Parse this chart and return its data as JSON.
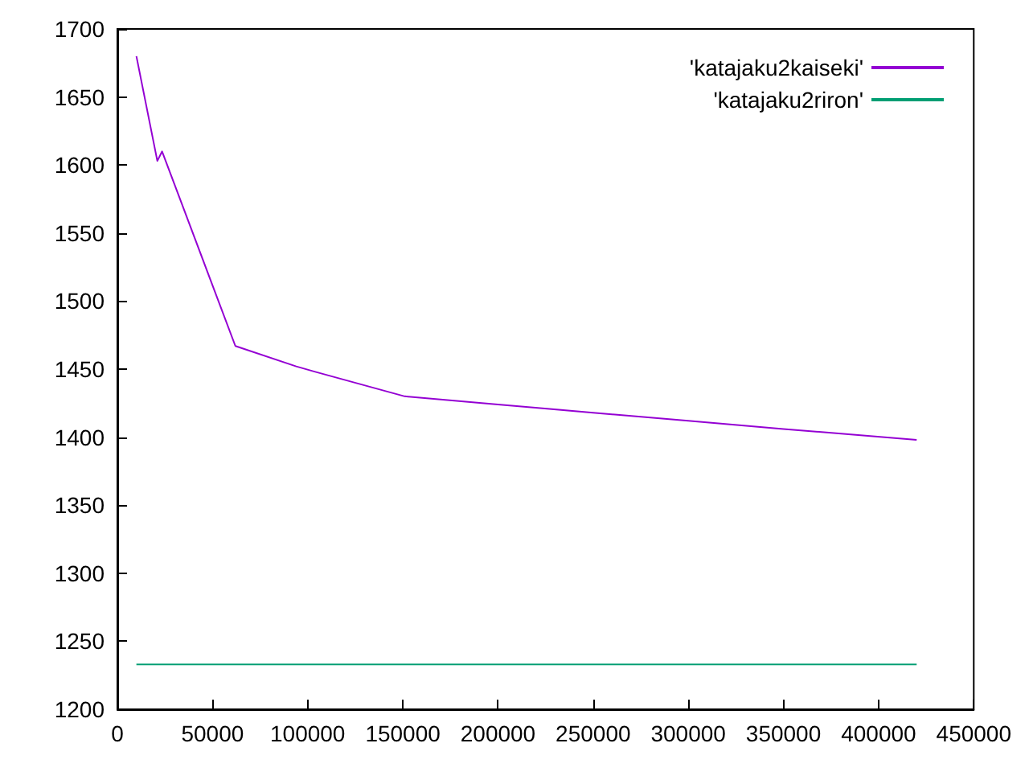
{
  "chart_data": {
    "type": "line",
    "xlim": [
      0,
      450000
    ],
    "xticks": [
      0,
      50000,
      100000,
      150000,
      200000,
      250000,
      300000,
      350000,
      400000,
      450000
    ],
    "ylim": [
      1200,
      1700
    ],
    "yticks": [
      1200,
      1250,
      1300,
      1350,
      1400,
      1450,
      1500,
      1550,
      1600,
      1650,
      1700
    ],
    "grid": false,
    "legend": "top right",
    "marker": "none",
    "line_style": "solid",
    "series": [
      {
        "name": "'katajaku2kaiseki'",
        "color": "#9400d3",
        "x": [
          10000,
          21000,
          23500,
          62000,
          94000,
          104000,
          151000,
          200000,
          250000,
          300000,
          350000,
          420000
        ],
        "values": [
          1680,
          1603,
          1610,
          1467,
          1452,
          1448,
          1430,
          1424,
          1418,
          1412,
          1406,
          1398
        ]
      },
      {
        "name": "'katajaku2riron'",
        "color": "#009e73",
        "x": [
          10000,
          420000
        ],
        "values": [
          1233,
          1233
        ]
      }
    ]
  }
}
